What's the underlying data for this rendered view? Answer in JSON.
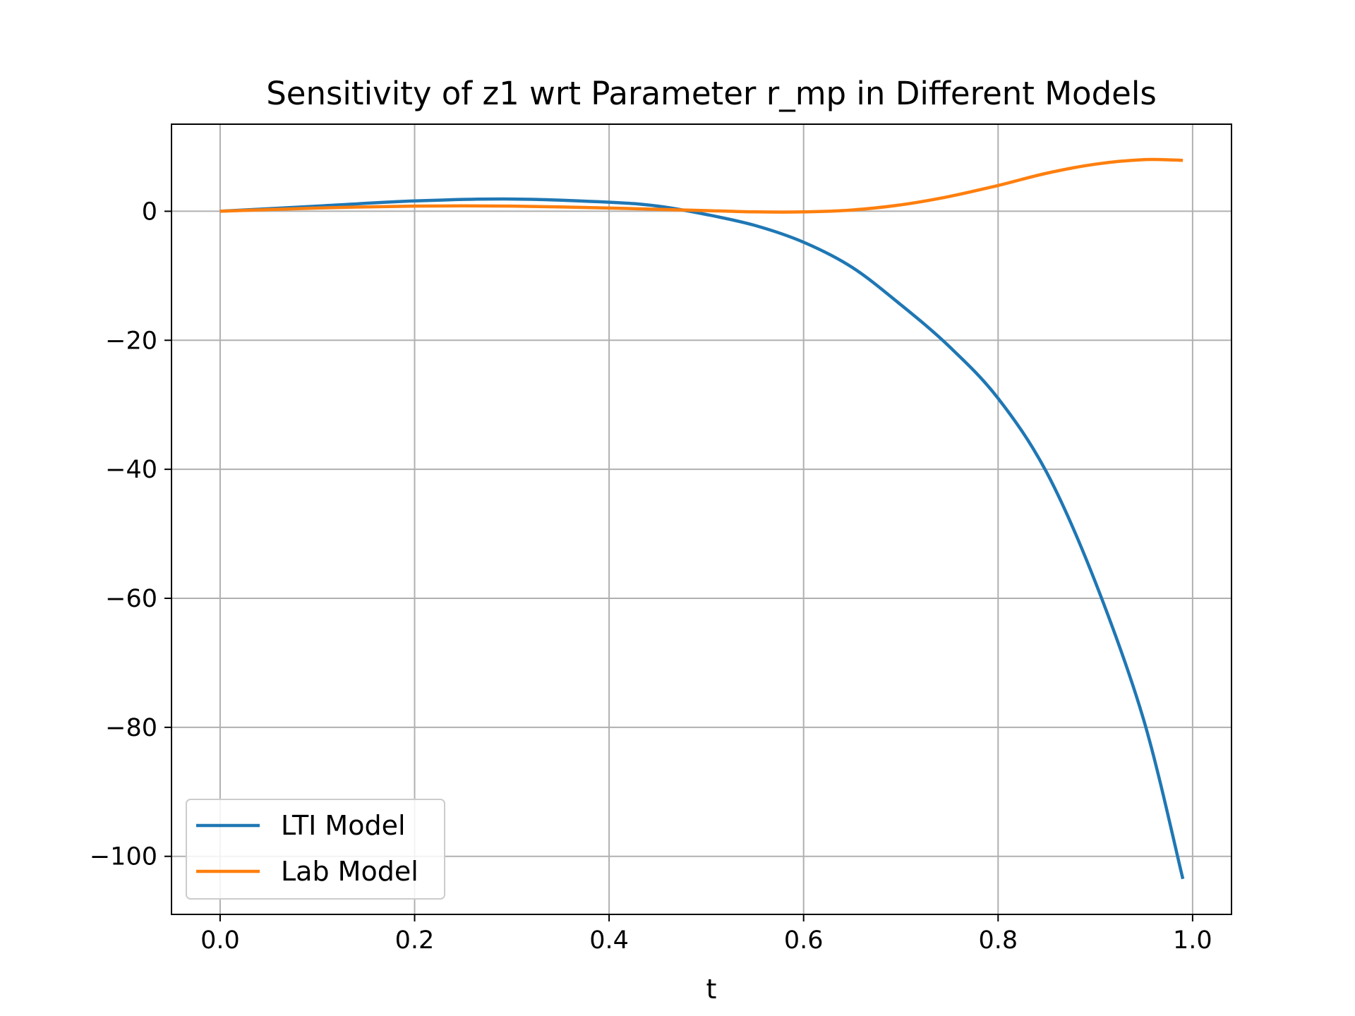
{
  "chart_data": {
    "type": "line",
    "title": "Sensitivity of z1 wrt Parameter r_mp in Different Models",
    "xlabel": "t",
    "ylabel": "",
    "xlim": [
      -0.05,
      1.04
    ],
    "ylim": [
      -109,
      13.5
    ],
    "xticks": [
      0.0,
      0.2,
      0.4,
      0.6,
      0.8,
      1.0
    ],
    "xtick_labels": [
      "0.0",
      "0.2",
      "0.4",
      "0.6",
      "0.8",
      "1.0"
    ],
    "yticks": [
      0,
      -20,
      -40,
      -60,
      -80,
      -100
    ],
    "ytick_labels": [
      "0",
      "−20",
      "−40",
      "−60",
      "−80",
      "−100"
    ],
    "grid": true,
    "legend_position": "lower-left",
    "series": [
      {
        "name": "LTI Model",
        "color": "#1f77b4",
        "x": [
          0.0,
          0.1,
          0.2,
          0.3,
          0.4,
          0.45,
          0.5,
          0.55,
          0.6,
          0.65,
          0.7,
          0.75,
          0.8,
          0.85,
          0.9,
          0.95,
          0.99
        ],
        "y": [
          0.0,
          0.8,
          1.6,
          1.9,
          1.4,
          0.8,
          -0.5,
          -2.2,
          -4.8,
          -8.7,
          -14.5,
          -21.0,
          -29.0,
          -40.5,
          -57.5,
          -79.0,
          -103.5
        ]
      },
      {
        "name": "Lab Model",
        "color": "#ff7f0e",
        "x": [
          0.0,
          0.1,
          0.2,
          0.3,
          0.4,
          0.5,
          0.55,
          0.6,
          0.65,
          0.7,
          0.75,
          0.8,
          0.85,
          0.9,
          0.95,
          0.99
        ],
        "y": [
          0.0,
          0.5,
          0.8,
          0.8,
          0.5,
          0.1,
          -0.1,
          -0.1,
          0.2,
          1.0,
          2.3,
          4.0,
          5.9,
          7.3,
          8.0,
          7.9
        ]
      }
    ]
  }
}
